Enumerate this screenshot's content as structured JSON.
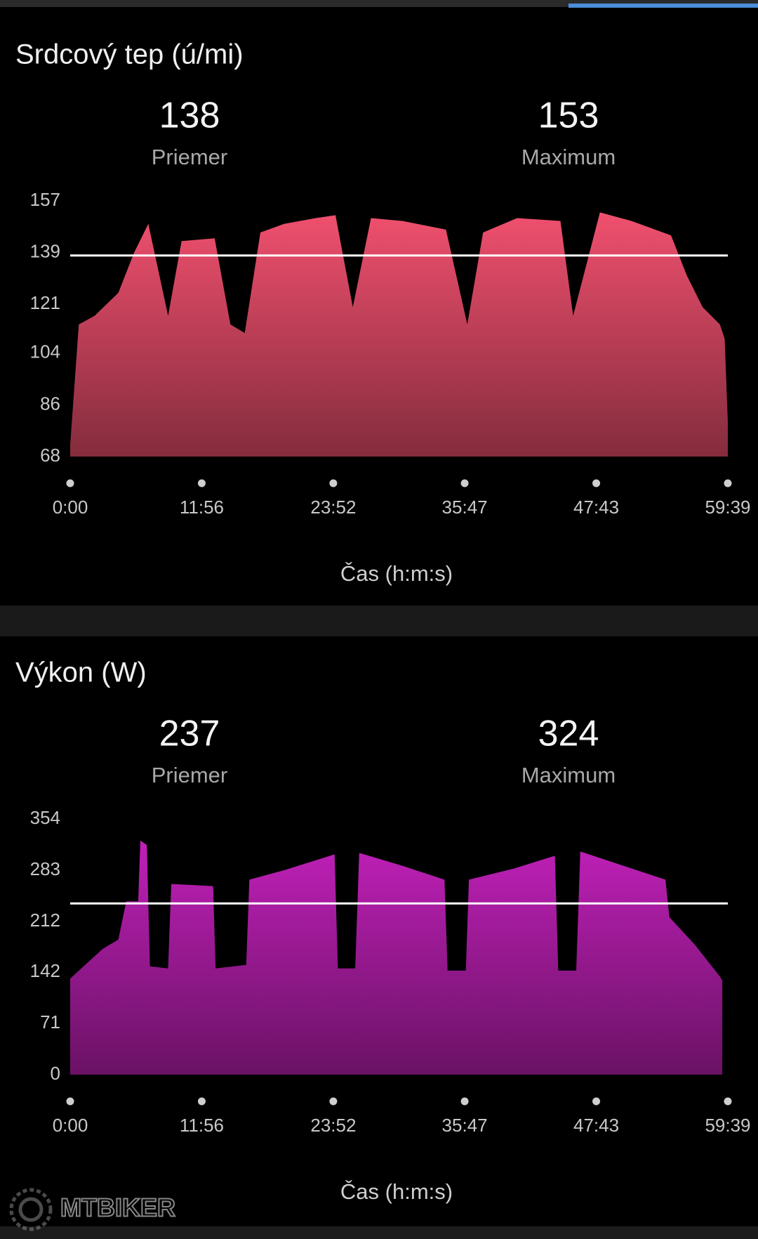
{
  "chart_data": [
    {
      "type": "area",
      "title": "Srdcový tep (ú/mi)",
      "stats": [
        {
          "value": 138,
          "label": "Priemer"
        },
        {
          "value": 153,
          "label": "Maximum"
        }
      ],
      "x": [
        0,
        47,
        133,
        262,
        348,
        425,
        533,
        606,
        786,
        872,
        950,
        1035,
        1164,
        1336,
        1444,
        1538,
        1637,
        1809,
        2045,
        2161,
        2247,
        2432,
        2668,
        2737,
        2883,
        3055,
        3270,
        3356,
        3442,
        3536,
        3562,
        3579
      ],
      "values": [
        72,
        114,
        117,
        125,
        139,
        149,
        117,
        143,
        144,
        114,
        111,
        146,
        149,
        151,
        152,
        120,
        151,
        150,
        147,
        114,
        146,
        151,
        150,
        117,
        153,
        150,
        145,
        131,
        120,
        114,
        109,
        80
      ],
      "color": "#f0506e",
      "xlim": [
        0,
        3579
      ],
      "xticks": [
        {
          "value": 0,
          "label": "0:00"
        },
        {
          "value": 716,
          "label": "11:56"
        },
        {
          "value": 1432,
          "label": "23:52"
        },
        {
          "value": 2147,
          "label": "35:47"
        },
        {
          "value": 2863,
          "label": "47:43"
        },
        {
          "value": 3579,
          "label": "59:39"
        }
      ],
      "ylim": [
        68,
        157
      ],
      "yticks": [
        68,
        86,
        104,
        121,
        139,
        157
      ],
      "x_label": "Čas (h:m:s)"
    },
    {
      "type": "area",
      "title": "Výkon (W)",
      "stats": [
        {
          "value": 237,
          "label": "Priemer"
        },
        {
          "value": 324,
          "label": "Maximum"
        }
      ],
      "x": [
        0,
        176,
        262,
        305,
        370,
        382,
        417,
        434,
        533,
        550,
        778,
        791,
        958,
        975,
        1164,
        1439,
        1457,
        1551,
        1573,
        1809,
        2037,
        2054,
        2153,
        2170,
        2411,
        2638,
        2656,
        2754,
        2776,
        3012,
        3240,
        3261,
        3399,
        3536,
        3549
      ],
      "values": [
        133,
        174,
        187,
        240,
        240,
        324,
        318,
        150,
        147,
        264,
        261,
        147,
        152,
        270,
        283,
        305,
        147,
        147,
        307,
        289,
        270,
        144,
        144,
        270,
        285,
        303,
        144,
        144,
        309,
        289,
        270,
        218,
        180,
        136,
        130
      ],
      "color": "#c020b8",
      "xlim": [
        0,
        3579
      ],
      "xticks": [
        {
          "value": 0,
          "label": "0:00"
        },
        {
          "value": 716,
          "label": "11:56"
        },
        {
          "value": 1432,
          "label": "23:52"
        },
        {
          "value": 2147,
          "label": "35:47"
        },
        {
          "value": 2863,
          "label": "47:43"
        },
        {
          "value": 3579,
          "label": "59:39"
        }
      ],
      "ylim": [
        0,
        354
      ],
      "yticks": [
        0,
        71,
        142,
        212,
        283,
        354
      ],
      "x_label": "Čas (h:m:s)"
    }
  ],
  "watermark": "MTBIKER"
}
